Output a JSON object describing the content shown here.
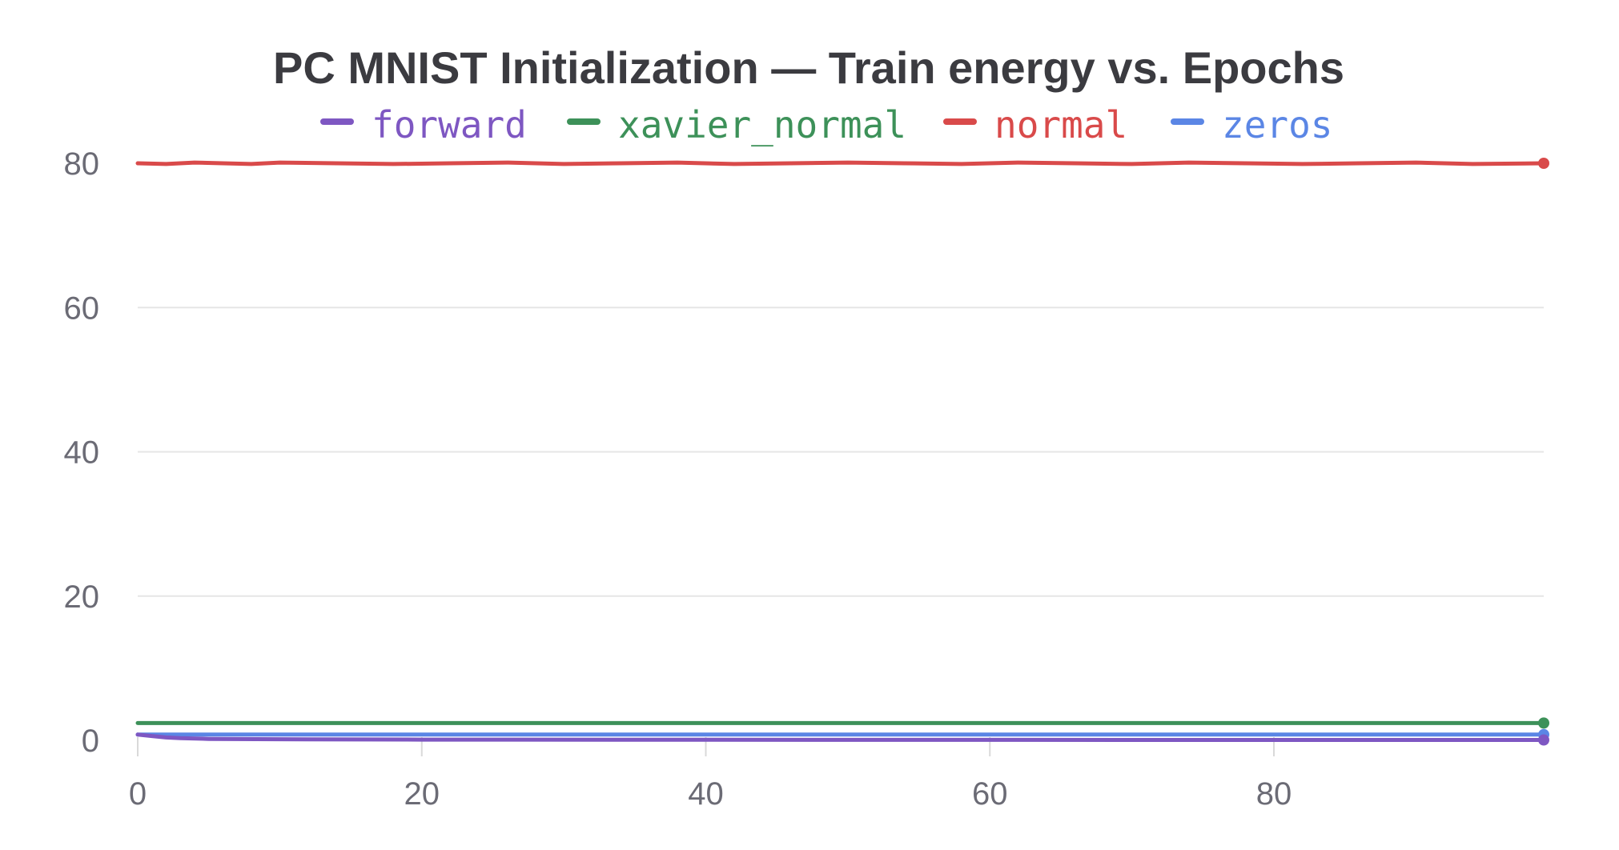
{
  "chart_data": {
    "type": "line",
    "title": "PC MNIST Initialization — Train energy vs. Epochs",
    "xlabel": "",
    "ylabel": "",
    "xlim": [
      0,
      99
    ],
    "ylim": [
      0,
      80
    ],
    "x_ticks": [
      0,
      20,
      40,
      60,
      80
    ],
    "y_ticks": [
      0,
      20,
      40,
      60,
      80
    ],
    "x_tick_labels": [
      "0",
      "20",
      "40",
      "60",
      "80"
    ],
    "y_tick_labels": [
      "0",
      "20",
      "40",
      "60",
      "80"
    ],
    "grid": "horizontal",
    "legend": "top",
    "series": [
      {
        "name": "forward",
        "color": "#7e57c2",
        "x": [
          0,
          1,
          2,
          3,
          5,
          10,
          20,
          40,
          60,
          80,
          99
        ],
        "values": [
          0.8,
          0.6,
          0.4,
          0.3,
          0.2,
          0.15,
          0.1,
          0.08,
          0.07,
          0.06,
          0.05
        ]
      },
      {
        "name": "xavier_normal",
        "color": "#3d9159",
        "x": [
          0,
          20,
          40,
          60,
          80,
          99
        ],
        "values": [
          2.4,
          2.4,
          2.4,
          2.4,
          2.4,
          2.4
        ]
      },
      {
        "name": "normal",
        "color": "#d94a4a",
        "x": [
          0,
          2,
          4,
          6,
          8,
          10,
          14,
          18,
          22,
          26,
          30,
          34,
          38,
          42,
          46,
          50,
          54,
          58,
          62,
          66,
          70,
          74,
          78,
          82,
          86,
          90,
          94,
          99
        ],
        "values": [
          80.0,
          79.9,
          80.1,
          80.0,
          79.9,
          80.1,
          80.0,
          79.9,
          80.0,
          80.1,
          79.9,
          80.0,
          80.1,
          79.9,
          80.0,
          80.1,
          80.0,
          79.9,
          80.1,
          80.0,
          79.9,
          80.1,
          80.0,
          79.9,
          80.0,
          80.1,
          79.9,
          80.0
        ]
      },
      {
        "name": "zeros",
        "color": "#5b86e5",
        "x": [
          0,
          20,
          40,
          60,
          80,
          99
        ],
        "values": [
          0.8,
          0.8,
          0.8,
          0.8,
          0.8,
          0.8
        ]
      }
    ]
  }
}
